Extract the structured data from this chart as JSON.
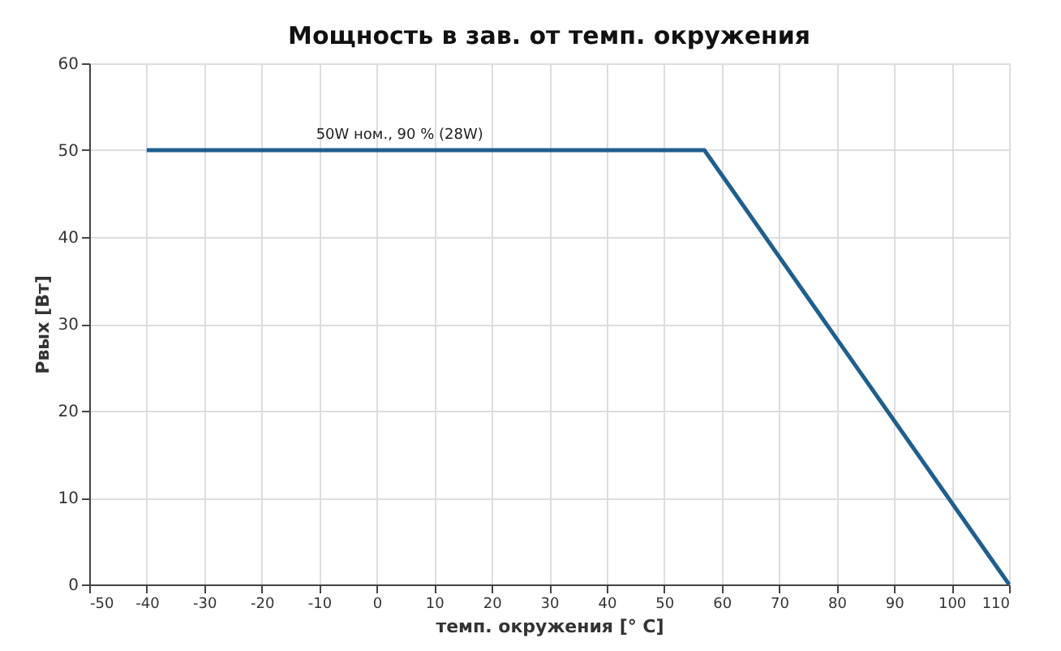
{
  "chart_data": {
    "type": "line",
    "title": "Мощность в зав. от темп. окружения",
    "xlabel": "темп. окружения [° C]",
    "ylabel": "Pвых [Вт]",
    "x": [
      -40,
      57,
      110
    ],
    "series": [
      {
        "color": "#1f5f8f",
        "values": [
          50,
          50,
          0
        ]
      }
    ],
    "xlim": [
      -50,
      110
    ],
    "xticks": [
      -50,
      -40,
      -30,
      -20,
      -10,
      0,
      10,
      20,
      30,
      40,
      50,
      60,
      70,
      80,
      90,
      100,
      110
    ],
    "ylim": [
      0,
      60
    ],
    "yticks": [
      0,
      10,
      20,
      30,
      40,
      50,
      60
    ],
    "annotations": [
      {
        "text": "50W ном., 90 % (28W)",
        "x": 4,
        "y": 50
      }
    ],
    "grid": true,
    "legend": false,
    "marker": "none",
    "line_style": "solid"
  }
}
